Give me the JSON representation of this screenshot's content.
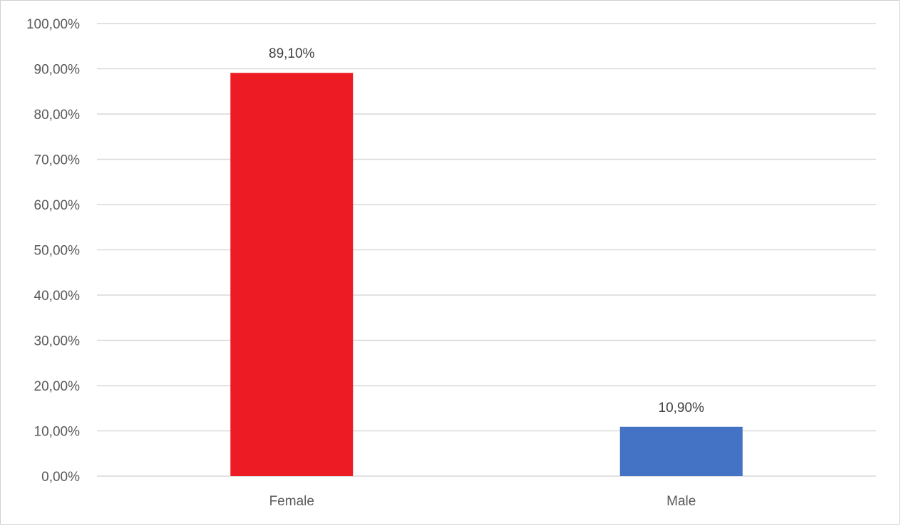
{
  "chart_data": {
    "type": "bar",
    "title": "",
    "xlabel": "",
    "ylabel": "",
    "categories": [
      "Female",
      "Male"
    ],
    "values": [
      89.1,
      10.9
    ],
    "data_labels": [
      "89,10%",
      "10,90%"
    ],
    "bar_colors": [
      "#ed1c24",
      "#4472c4"
    ],
    "ylim": [
      0,
      100
    ],
    "y_ticks": [
      0,
      10,
      20,
      30,
      40,
      50,
      60,
      70,
      80,
      90,
      100
    ],
    "y_tick_labels": [
      "0,00%",
      "10,00%",
      "20,00%",
      "30,00%",
      "40,00%",
      "50,00%",
      "60,00%",
      "70,00%",
      "80,00%",
      "90,00%",
      "100,00%"
    ],
    "grid": true,
    "legend": "none"
  }
}
